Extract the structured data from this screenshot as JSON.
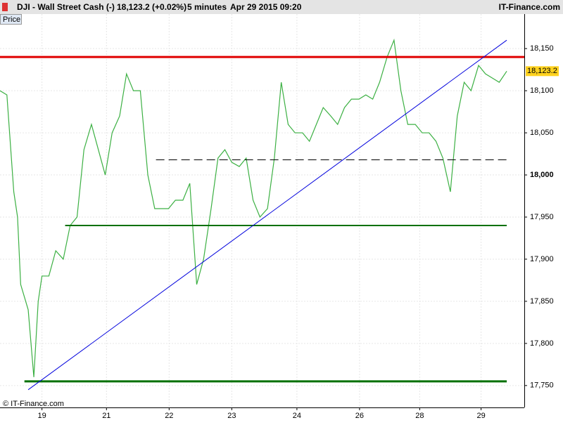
{
  "header": {
    "symbol": "DJI - Wall Street Cash (-)",
    "quote": "18,123.2 (+0.02%)",
    "interval": "5 minutes",
    "datetime": "Apr 29 2015 09:20",
    "brand": "IT-Finance.com"
  },
  "tab": "Price",
  "copyright": "© IT-Finance.com",
  "chart_data": {
    "type": "line",
    "x": [
      -0.67,
      -0.56,
      -0.45,
      -0.39,
      -0.34,
      -0.22,
      -0.13,
      -0.06,
      0,
      0.11,
      0.22,
      0.34,
      0.45,
      0.56,
      0.67,
      0.79,
      0.9,
      1.01,
      1.12,
      1.24,
      1.35,
      1.46,
      1.57,
      1.69,
      1.8,
      1.91,
      2.02,
      2.13,
      2.25,
      2.36,
      2.47,
      2.58,
      2.7,
      2.81,
      2.92,
      3.03,
      3.15,
      3.26,
      3.37,
      3.48,
      3.6,
      3.71,
      3.82,
      3.93,
      4.04,
      4.16,
      4.27,
      4.38,
      4.49,
      4.61,
      4.72,
      4.83,
      4.94,
      5.06,
      5.17,
      5.28,
      5.39,
      5.51,
      5.62,
      5.73,
      5.84,
      5.96,
      6.07,
      6.18,
      6.29,
      6.4,
      6.52,
      6.63,
      6.74,
      6.85,
      6.97,
      7.08,
      7.19,
      7.3,
      7.42
    ],
    "series": [
      {
        "name": "Price",
        "color": "#3cb043",
        "values": [
          18100,
          18095,
          17980,
          17950,
          17870,
          17840,
          17760,
          17850,
          17880,
          17880,
          17910,
          17900,
          17940,
          17950,
          18030,
          18060,
          18030,
          18000,
          18050,
          18070,
          18120,
          18100,
          18100,
          18000,
          17960,
          17960,
          17960,
          17970,
          17970,
          17990,
          17870,
          17900,
          17960,
          18020,
          18030,
          18015,
          18010,
          18020,
          17970,
          17950,
          17960,
          18020,
          18110,
          18060,
          18050,
          18050,
          18040,
          18060,
          18080,
          18070,
          18060,
          18080,
          18090,
          18090,
          18095,
          18090,
          18110,
          18140,
          18160,
          18100,
          18060,
          18060,
          18050,
          18050,
          18040,
          18020,
          17980,
          18070,
          18110,
          18100,
          18130,
          18120,
          18115,
          18110,
          18123.2
        ]
      }
    ],
    "last_value_label": "18,123.2",
    "lines": [
      {
        "color": "#e00000",
        "x": [
          -0.67,
          7.7
        ],
        "y": [
          18140,
          18140
        ],
        "width": 3
      },
      {
        "color": "#000000",
        "x": [
          1.82,
          7.42
        ],
        "y": [
          18018,
          18018
        ],
        "width": 1,
        "dashed": true
      },
      {
        "color": "#007000",
        "x": [
          0.37,
          7.42
        ],
        "y": [
          17940,
          17940
        ],
        "width": 2
      },
      {
        "color": "#007000",
        "x": [
          -0.28,
          7.42
        ],
        "y": [
          17755,
          17755
        ],
        "width": 3
      },
      {
        "color": "#0000dd",
        "x": [
          -0.22,
          7.42
        ],
        "y": [
          17745,
          18160
        ],
        "width": 1
      }
    ],
    "xlim": [
      -0.67,
      7.7
    ],
    "xticks": [
      {
        "value": 0,
        "label": "19"
      },
      {
        "value": 1.03,
        "label": "21"
      },
      {
        "value": 2.03,
        "label": "22"
      },
      {
        "value": 3.03,
        "label": "23"
      },
      {
        "value": 4.07,
        "label": "24"
      },
      {
        "value": 5.07,
        "label": "26"
      },
      {
        "value": 6.03,
        "label": "28"
      },
      {
        "value": 7.01,
        "label": "29"
      }
    ],
    "ylim": [
      17724,
      18191
    ],
    "yticks": [
      {
        "value": 17750,
        "label": "17,750"
      },
      {
        "value": 17800,
        "label": "17,800"
      },
      {
        "value": 17850,
        "label": "17,850"
      },
      {
        "value": 17900,
        "label": "17,900"
      },
      {
        "value": 17950,
        "label": "17,950"
      },
      {
        "value": 18000,
        "label": "18,000"
      },
      {
        "value": 18050,
        "label": "18,050"
      },
      {
        "value": 18100,
        "label": "18,100"
      },
      {
        "value": 18150,
        "label": "18,150"
      }
    ],
    "grid": true
  }
}
